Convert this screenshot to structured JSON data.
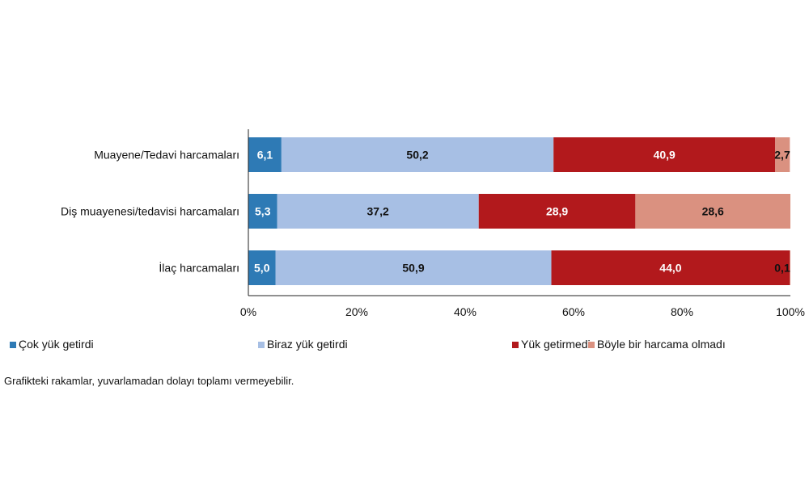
{
  "chart_data": {
    "type": "bar",
    "orientation": "horizontal",
    "stacked": true,
    "categories": [
      "Muayene/Tedavi harcamaları",
      "Diş muayenesi/tedavisi harcamaları",
      "İlaç harcamaları"
    ],
    "series": [
      {
        "name": "Çok yük getirdi",
        "color": "#2e7ab5",
        "label_color": "#ffffff",
        "values": [
          6.1,
          5.3,
          5.0
        ],
        "labels": [
          "6,1",
          "5,3",
          "5,0"
        ]
      },
      {
        "name": "Biraz yük getirdi",
        "color": "#a7bfe4",
        "label_color": "#111111",
        "values": [
          50.2,
          37.2,
          50.9
        ],
        "labels": [
          "50,2",
          "37,2",
          "50,9"
        ]
      },
      {
        "name": "Yük getirmedi",
        "color": "#b2191c",
        "label_color": "#ffffff",
        "values": [
          40.9,
          28.9,
          44.0
        ],
        "labels": [
          "40,9",
          "28,9",
          "44,0"
        ]
      },
      {
        "name": "Böyle bir harcama olmadı",
        "color": "#da9180",
        "label_color": "#111111",
        "values": [
          2.7,
          28.6,
          0.1
        ],
        "labels": [
          "2,7",
          "28,6",
          "0,1"
        ]
      }
    ],
    "xlim": [
      0,
      100
    ],
    "xticks": [
      "0%",
      "20%",
      "40%",
      "60%",
      "80%",
      "100%"
    ],
    "legend_position": "bottom",
    "grid": false,
    "note": "Grafikteki rakamlar, yuvarlamadan dolayı toplamı vermeyebilir."
  }
}
